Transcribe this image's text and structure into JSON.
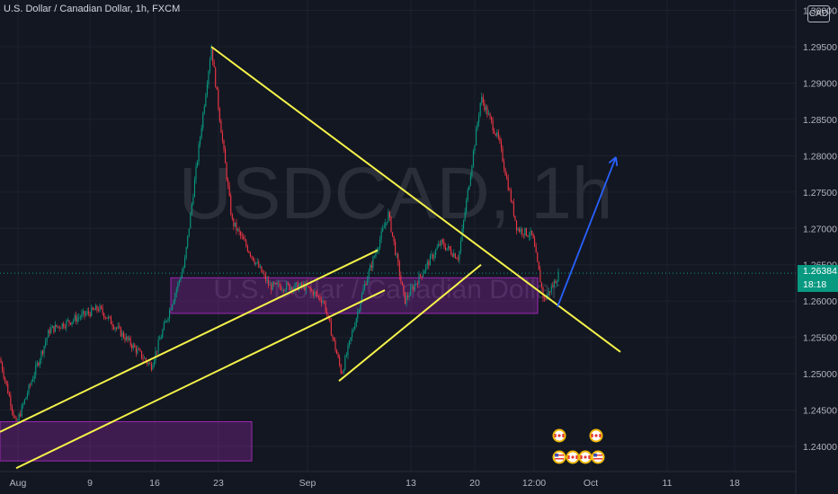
{
  "header": {
    "symbol_title": "U.S. Dollar / Canadian Dollar, 1h, FXCM"
  },
  "currency_label": "CAD",
  "watermark": {
    "symbol": "USDCAD, 1h",
    "description": "U.S. Dollar / Canadian Dollar"
  },
  "last_price": {
    "value": "1.26384",
    "countdown": "18:18"
  },
  "colors": {
    "background": "#131722",
    "bull": "#089981",
    "bear": "#f23645",
    "trendline": "#f5f34a",
    "zone": "#9c27b0",
    "arrow": "#2962ff"
  },
  "chart_data": {
    "type": "candlestick",
    "title": "U.S. Dollar / Canadian Dollar, 1h, FXCM",
    "y_axis": {
      "ticks": [
        "1.30000",
        "1.29500",
        "1.29000",
        "1.28500",
        "1.28000",
        "1.27500",
        "1.27000",
        "1.26500",
        "1.26000",
        "1.25500",
        "1.25000",
        "1.24500",
        "1.24000"
      ],
      "range": [
        1.2365,
        1.301
      ]
    },
    "x_axis": {
      "ticks": [
        "Aug",
        "9",
        "16",
        "23",
        "Sep",
        "13",
        "20",
        "12:00",
        "Oct",
        "11",
        "18"
      ]
    },
    "price_path": [
      [
        "Aug",
        1.252
      ],
      [
        "Aug",
        1.243
      ],
      [
        "9",
        1.256
      ],
      [
        "9",
        1.259
      ],
      [
        "16",
        1.251
      ],
      [
        "16",
        1.265
      ],
      [
        "23",
        1.295
      ],
      [
        "23",
        1.271
      ],
      [
        "23",
        1.262
      ],
      [
        "Sep",
        1.262
      ],
      [
        "Sep",
        1.26
      ],
      [
        "Sep",
        1.25
      ],
      [
        "Sep",
        1.262
      ],
      [
        "13",
        1.272
      ],
      [
        "13",
        1.26
      ],
      [
        "13",
        1.268
      ],
      [
        "20",
        1.266
      ],
      [
        "20",
        1.288
      ],
      [
        "20",
        1.282
      ],
      [
        "20",
        1.27
      ],
      [
        "12:00",
        1.269
      ],
      [
        "12:00",
        1.26
      ],
      [
        "12:00",
        1.2638
      ]
    ],
    "last_price": 1.26384,
    "drawings": {
      "trendlines": [
        {
          "from": [
            "23",
            1.295
          ],
          "to": [
            "Oct",
            1.253
          ]
        },
        {
          "from": [
            "Aug",
            1.242
          ],
          "to": [
            "13",
            1.267
          ]
        },
        {
          "from": [
            "Aug",
            1.237
          ],
          "to": [
            "13",
            1.2615
          ]
        },
        {
          "from": [
            "Sep",
            1.249
          ],
          "to": [
            "20",
            1.265
          ]
        }
      ],
      "zones": [
        {
          "low": 1.2583,
          "high": 1.2632
        },
        {
          "low": 1.238,
          "high": 1.2434
        }
      ],
      "projection_arrow": {
        "from": [
          "12:00",
          1.2592
        ],
        "to": [
          "Oct",
          1.2798
        ]
      }
    },
    "grid": true
  }
}
